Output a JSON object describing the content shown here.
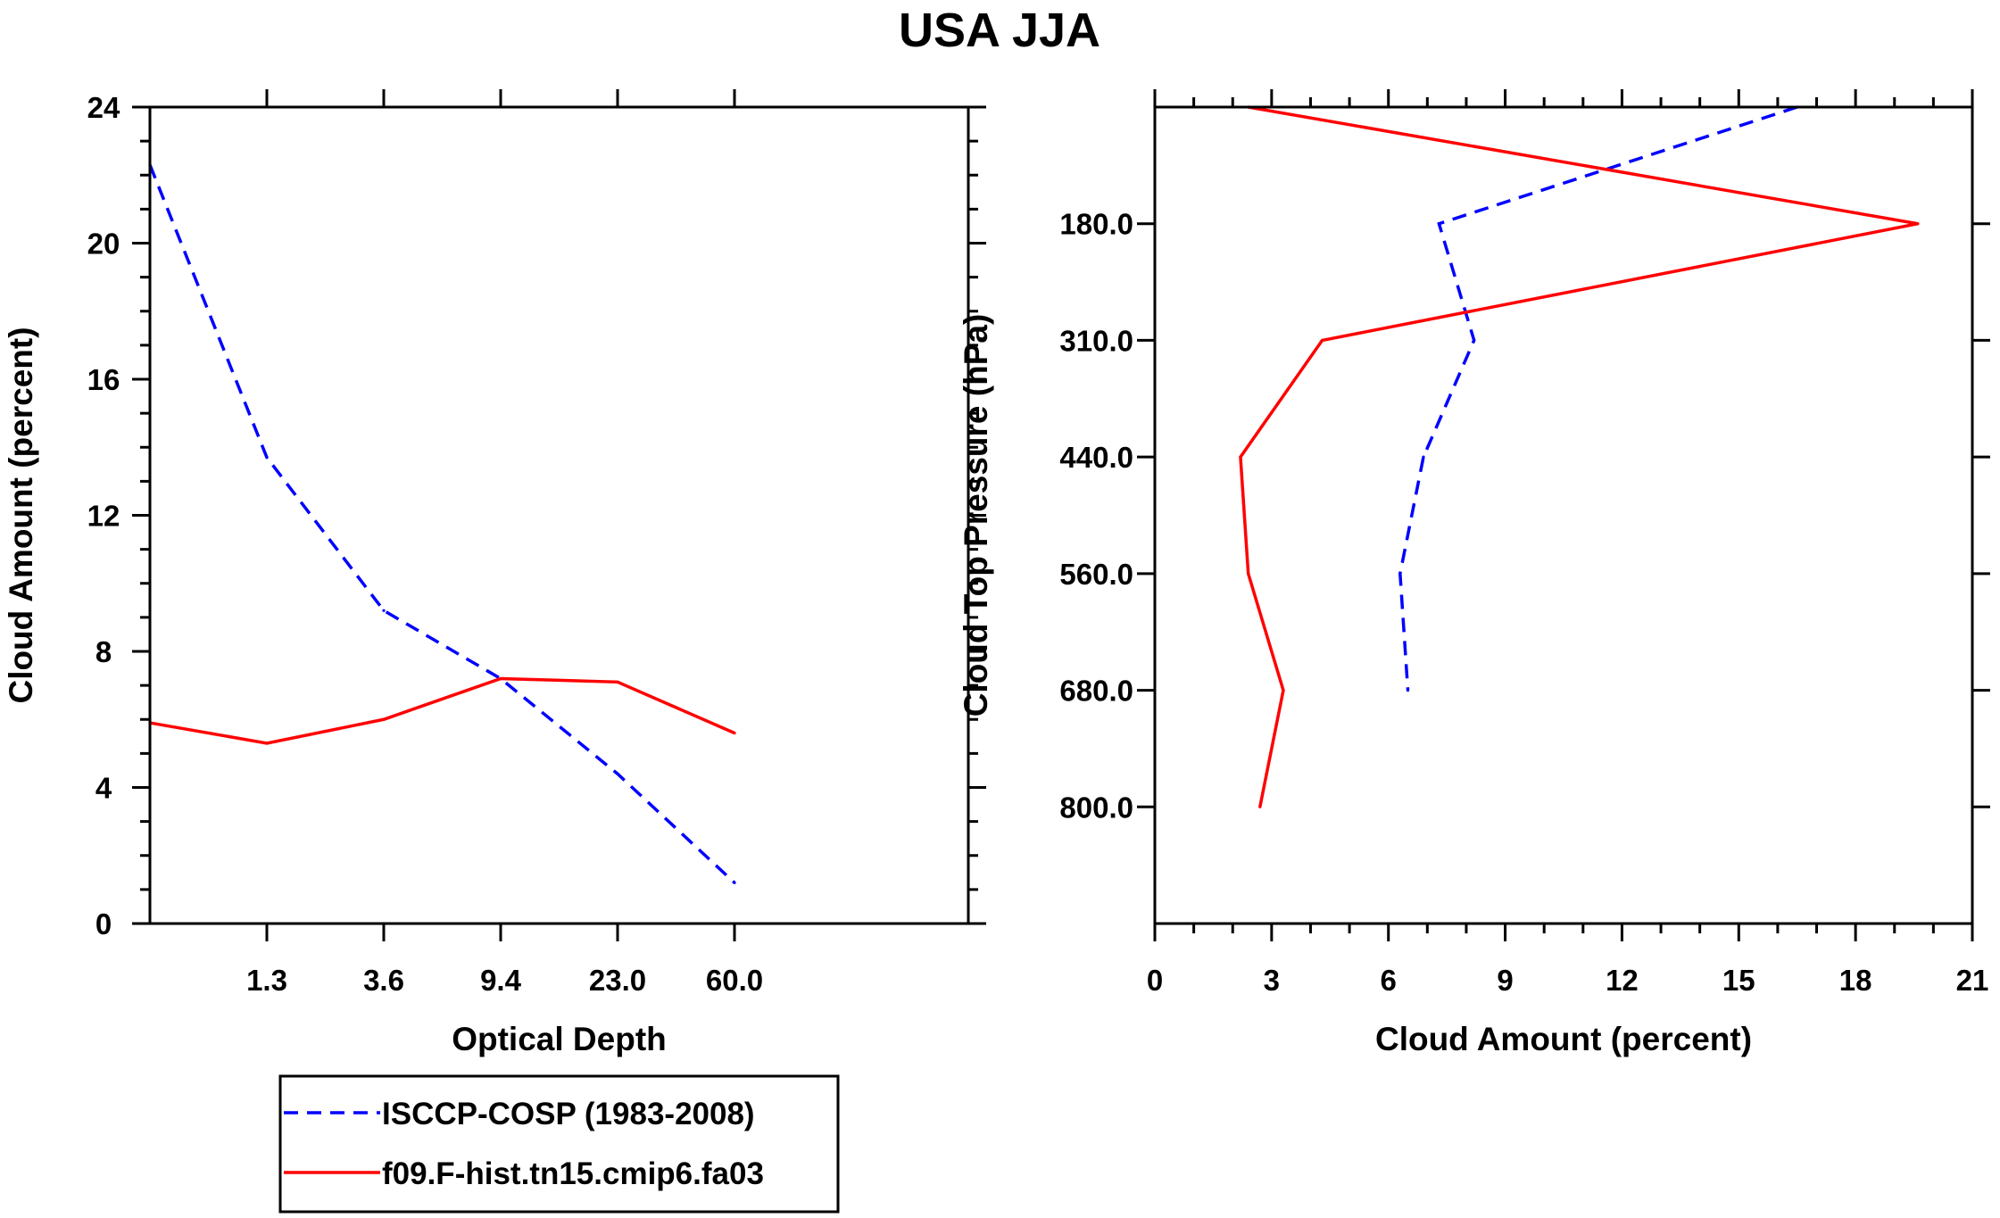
{
  "title": "USA JJA",
  "chart_data": [
    {
      "type": "line",
      "title": "USA JJA",
      "xlabel": "Optical Depth",
      "ylabel": "Cloud Amount (percent)",
      "ylim": [
        0,
        24
      ],
      "yticks": [
        "0",
        "4",
        "8",
        "12",
        "16",
        "20",
        "24"
      ],
      "x_tick_labels": [
        "1.3",
        "3.6",
        "9.4",
        "23.0",
        "60.0"
      ],
      "x_bins": 7,
      "series": [
        {
          "name": "ISCCP-COSP (1983-2008)",
          "color": "#0000ff",
          "dash": "dashed",
          "values": [
            22.3,
            13.7,
            9.2,
            7.2,
            4.4,
            1.2
          ]
        },
        {
          "name": "f09.F-hist.tn15.cmip6.fa03",
          "color": "#ff0000",
          "dash": "solid",
          "values": [
            5.9,
            5.3,
            6.0,
            7.2,
            7.1,
            5.6
          ]
        }
      ]
    },
    {
      "type": "line",
      "xlabel": "Cloud Amount (percent)",
      "ylabel": "Cloud Top Pressure (hPa)",
      "xlim": [
        0,
        21
      ],
      "xticks": [
        "0",
        "3",
        "6",
        "9",
        "12",
        "15",
        "18",
        "21"
      ],
      "y_tick_labels": [
        "180.0",
        "310.0",
        "440.0",
        "560.0",
        "680.0",
        "800.0"
      ],
      "y_bins": 7,
      "series": [
        {
          "name": "ISCCP-COSP (1983-2008)",
          "color": "#0000ff",
          "dash": "dashed",
          "values": [
            16.5,
            7.3,
            8.2,
            6.9,
            6.3,
            6.5
          ]
        },
        {
          "name": "f09.F-hist.tn15.cmip6.fa03",
          "color": "#ff0000",
          "dash": "solid",
          "values": [
            2.4,
            19.6,
            4.3,
            2.2,
            2.4,
            3.3,
            2.7
          ]
        }
      ]
    }
  ],
  "legend": {
    "items": [
      {
        "label": "ISCCP-COSP (1983-2008)",
        "color": "#0000ff",
        "dash": "dashed"
      },
      {
        "label": "f09.F-hist.tn15.cmip6.fa03",
        "color": "#ff0000",
        "dash": "solid"
      }
    ]
  }
}
